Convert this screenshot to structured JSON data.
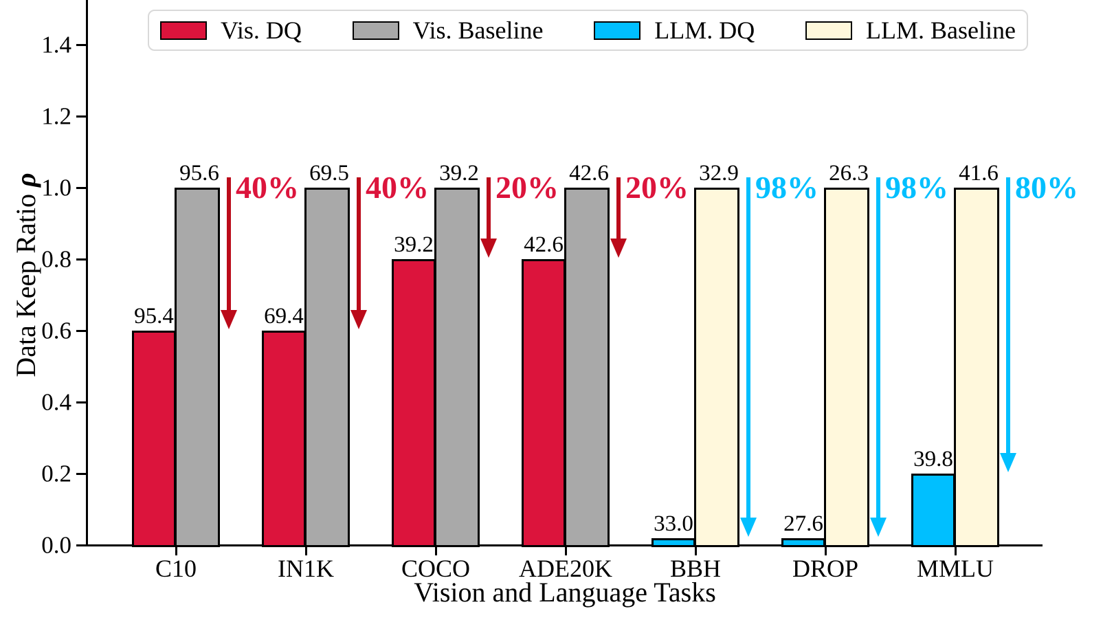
{
  "chart_data": {
    "type": "bar",
    "title": "",
    "xlabel": "Vision and Language Tasks",
    "ylabel": "Data Keep Ratio ρ",
    "ylabel_text": "Data Keep Ratio ",
    "ylabel_symbol": "ρ",
    "ylim": [
      0,
      1.525
    ],
    "grid": false,
    "legend_position": "top",
    "y_ticks": [
      0.0,
      0.2,
      0.4,
      0.6,
      0.8,
      1.0,
      1.2,
      1.4
    ],
    "y_tick_labels": [
      "0.0",
      "0.2",
      "0.4",
      "0.6",
      "0.8",
      "1.0",
      "1.2",
      "1.4"
    ],
    "categories": [
      "C10",
      "IN1K",
      "COCO",
      "ADE20K",
      "BBH",
      "DROP",
      "MMLU"
    ],
    "series": [
      {
        "name": "Vis. DQ",
        "color": "#DC143C",
        "values": [
          0.6,
          0.6,
          0.8,
          0.8,
          null,
          null,
          null
        ]
      },
      {
        "name": "Vis. Baseline",
        "color": "#A9A9A9",
        "values": [
          1.0,
          1.0,
          1.0,
          1.0,
          null,
          null,
          null
        ]
      },
      {
        "name": "LLM. DQ",
        "color": "#00BFFF",
        "values": [
          null,
          null,
          null,
          null,
          0.02,
          0.02,
          0.2
        ]
      },
      {
        "name": "LLM. Baseline",
        "color": "#FFF8DC",
        "values": [
          null,
          null,
          null,
          null,
          1.0,
          1.0,
          1.0
        ]
      }
    ],
    "groups": [
      {
        "category": "C10",
        "domain": "vision",
        "dq": 0.6,
        "dq_label": "95.4",
        "baseline": 1.0,
        "baseline_label": "95.6",
        "reduction": "40%"
      },
      {
        "category": "IN1K",
        "domain": "vision",
        "dq": 0.6,
        "dq_label": "69.4",
        "baseline": 1.0,
        "baseline_label": "69.5",
        "reduction": "40%"
      },
      {
        "category": "COCO",
        "domain": "vision",
        "dq": 0.8,
        "dq_label": "39.2",
        "baseline": 1.0,
        "baseline_label": "39.2",
        "reduction": "20%"
      },
      {
        "category": "ADE20K",
        "domain": "vision",
        "dq": 0.8,
        "dq_label": "42.6",
        "baseline": 1.0,
        "baseline_label": "42.6",
        "reduction": "20%"
      },
      {
        "category": "BBH",
        "domain": "llm",
        "dq": 0.02,
        "dq_label": "33.0",
        "baseline": 1.0,
        "baseline_label": "32.9",
        "reduction": "98%"
      },
      {
        "category": "DROP",
        "domain": "llm",
        "dq": 0.02,
        "dq_label": "27.6",
        "baseline": 1.0,
        "baseline_label": "26.3",
        "reduction": "98%"
      },
      {
        "category": "MMLU",
        "domain": "llm",
        "dq": 0.2,
        "dq_label": "39.8",
        "baseline": 1.0,
        "baseline_label": "41.6",
        "reduction": "80%"
      }
    ],
    "colors": {
      "vision": {
        "dq": "#DC143C",
        "baseline": "#A9A9A9",
        "arrow": "#BB0A1A",
        "annotation": "#DC143C"
      },
      "llm": {
        "dq": "#00BFFF",
        "baseline": "#FFF8DC",
        "arrow": "#00BFFF",
        "annotation": "#00BFFF"
      },
      "bar_edge": "#000000"
    }
  },
  "legend": {
    "items": [
      {
        "label": "Vis. DQ",
        "color": "#DC143C",
        "slug": "vis-dq"
      },
      {
        "label": "Vis. Baseline",
        "color": "#A9A9A9",
        "slug": "vis-baseline"
      },
      {
        "label": "LLM. DQ",
        "color": "#00BFFF",
        "slug": "llm-dq"
      },
      {
        "label": "LLM. Baseline",
        "color": "#FFF8DC",
        "slug": "llm-baseline"
      }
    ]
  }
}
